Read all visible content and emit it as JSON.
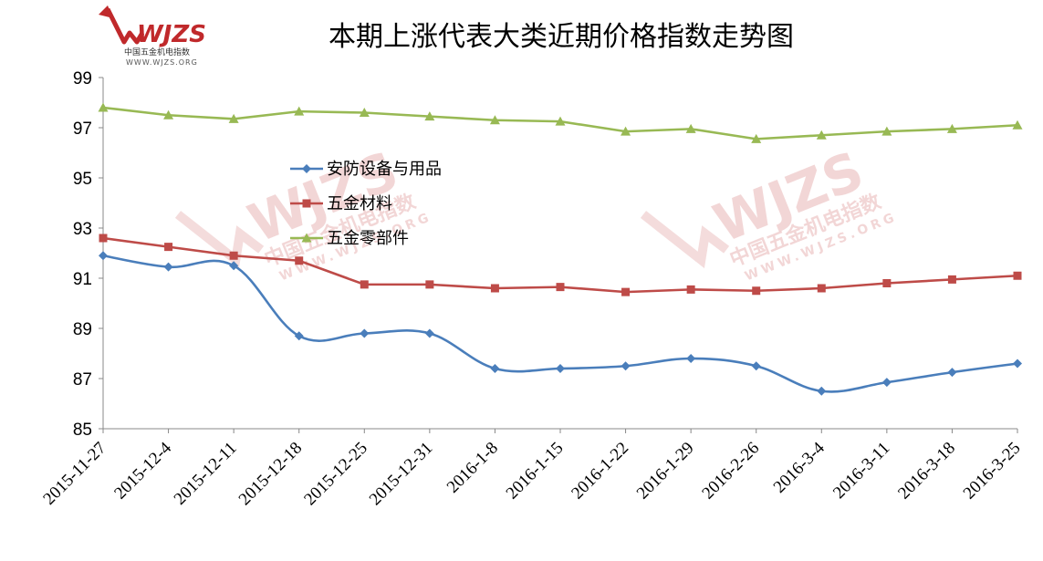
{
  "logo": {
    "brand": "WJZS",
    "subtitle": "中国五金机电指数",
    "url": "WWW.WJZS.ORG",
    "color": "#c0292b"
  },
  "chart_data": {
    "type": "line",
    "title": "本期上涨代表大类近期价格指数走势图",
    "xlabel": "",
    "ylabel": "",
    "ylim": [
      85,
      99
    ],
    "yticks": [
      85,
      87,
      89,
      91,
      93,
      95,
      97,
      99
    ],
    "grid": false,
    "legend_position": "left-center",
    "categories": [
      "2015-11-27",
      "2015-12-4",
      "2015-12-11",
      "2015-12-18",
      "2015-12-25",
      "2015-12-31",
      "2016-1-8",
      "2016-1-15",
      "2016-1-22",
      "2016-1-29",
      "2016-2-26",
      "2016-3-4",
      "2016-3-11",
      "2016-3-18",
      "2016-3-25"
    ],
    "series": [
      {
        "name": "安防设备与用品",
        "color": "#4a7ebb",
        "marker": "diamond",
        "smooth": true,
        "values": [
          91.9,
          91.45,
          91.5,
          88.7,
          88.8,
          88.8,
          87.4,
          87.4,
          87.5,
          87.8,
          87.5,
          86.5,
          86.85,
          87.25,
          87.6
        ]
      },
      {
        "name": "五金材料",
        "color": "#be4b48",
        "marker": "square",
        "smooth": false,
        "values": [
          92.6,
          92.25,
          91.9,
          91.7,
          90.75,
          90.75,
          90.6,
          90.65,
          90.45,
          90.55,
          90.5,
          90.6,
          90.8,
          90.95,
          91.1
        ]
      },
      {
        "name": "五金零部件",
        "color": "#98b954",
        "marker": "triangle",
        "smooth": false,
        "values": [
          97.8,
          97.5,
          97.35,
          97.65,
          97.6,
          97.45,
          97.3,
          97.25,
          96.85,
          96.95,
          96.55,
          96.7,
          96.85,
          96.95,
          97.1
        ]
      }
    ]
  }
}
